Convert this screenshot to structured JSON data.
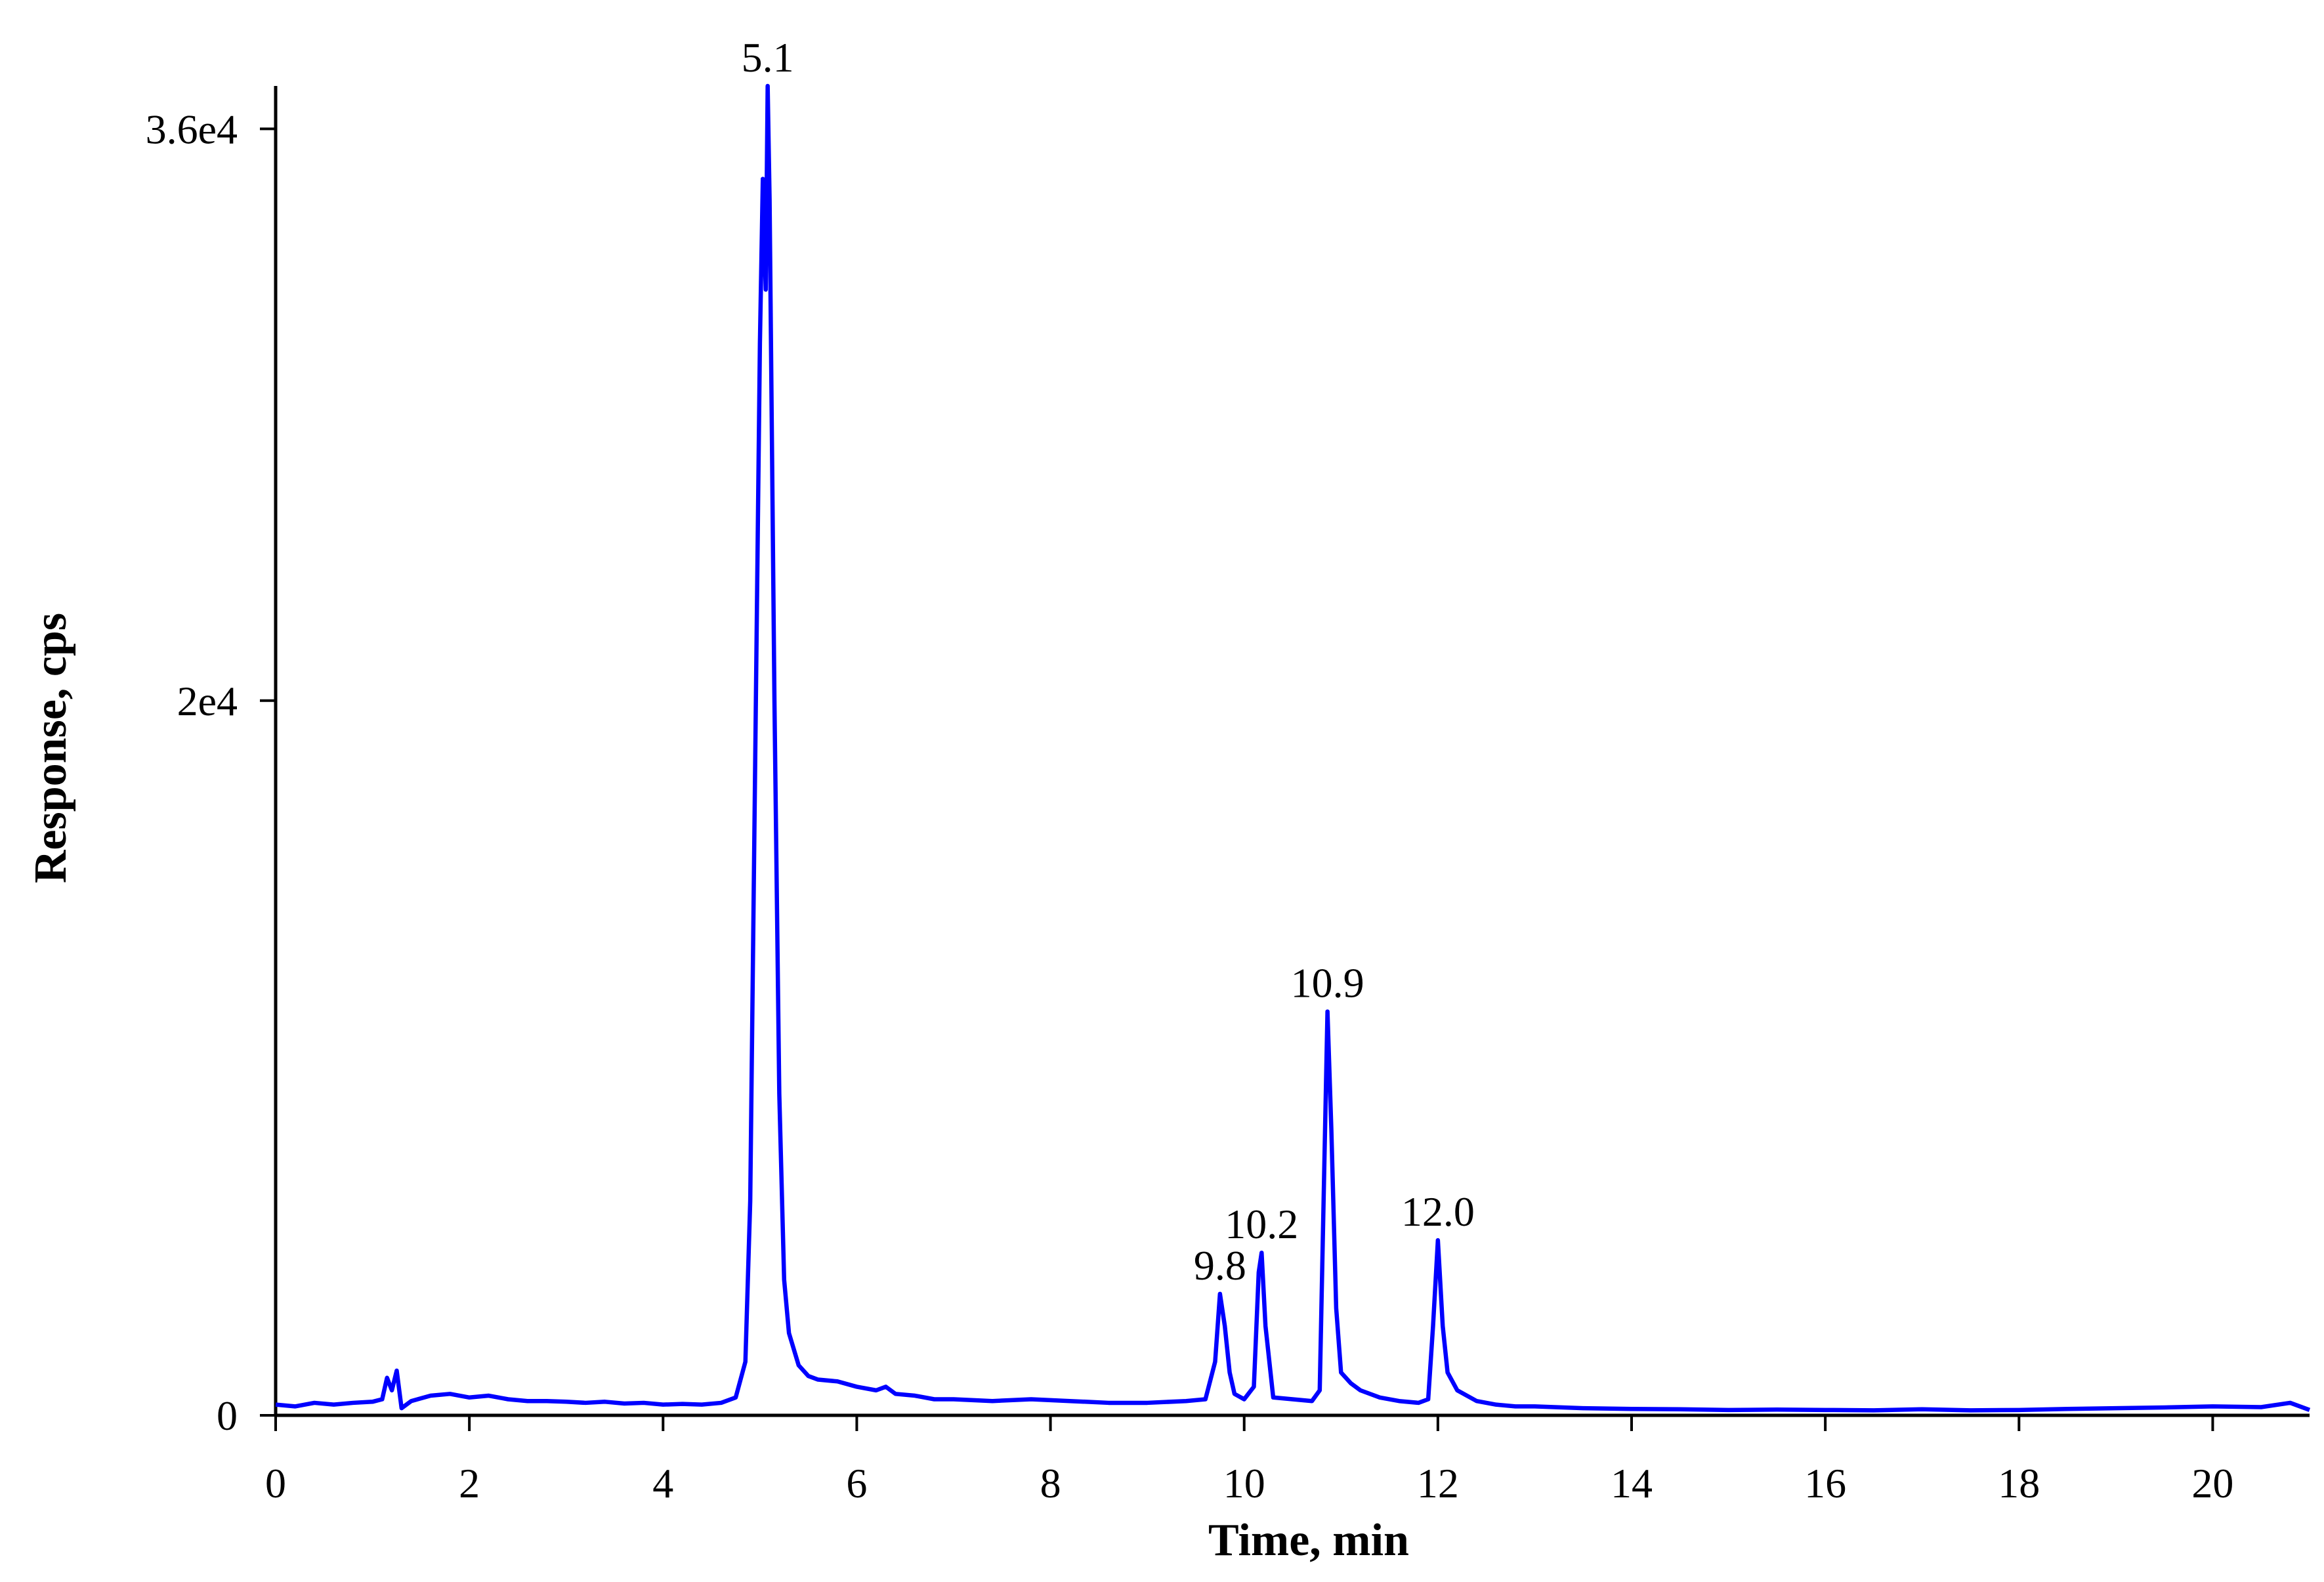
{
  "chart_data": {
    "type": "line",
    "x_label": "Time, min",
    "y_label": "Response, cps",
    "color": "#0000ff",
    "xlim": [
      0,
      21
    ],
    "xticks": [
      0,
      2,
      4,
      6,
      8,
      10,
      12,
      14,
      16,
      18,
      20
    ],
    "ylim": [
      0,
      37200
    ],
    "yticks": [
      0,
      {
        "value": 20000,
        "label": "2e4"
      },
      {
        "value": 36000,
        "label": "3.6e4"
      }
    ],
    "x": [
      0,
      0.2,
      0.4,
      0.6,
      0.8,
      1.0,
      1.1,
      1.15,
      1.2,
      1.25,
      1.3,
      1.4,
      1.6,
      1.8,
      2.0,
      2.2,
      2.4,
      2.6,
      2.8,
      3.0,
      3.2,
      3.4,
      3.6,
      3.8,
      4.0,
      4.2,
      4.4,
      4.6,
      4.75,
      4.85,
      4.9,
      4.95,
      5.0,
      5.03,
      5.06,
      5.08,
      5.1,
      5.15,
      5.2,
      5.25,
      5.3,
      5.4,
      5.5,
      5.6,
      5.8,
      6.0,
      6.2,
      6.3,
      6.4,
      6.6,
      6.8,
      7.0,
      7.4,
      7.8,
      8.2,
      8.6,
      9.0,
      9.4,
      9.6,
      9.7,
      9.75,
      9.8,
      9.85,
      9.9,
      10.0,
      10.1,
      10.15,
      10.18,
      10.22,
      10.3,
      10.5,
      10.7,
      10.78,
      10.82,
      10.86,
      10.9,
      10.95,
      11.0,
      11.1,
      11.2,
      11.4,
      11.6,
      11.8,
      11.9,
      11.95,
      12.0,
      12.05,
      12.1,
      12.2,
      12.4,
      12.6,
      12.8,
      13.0,
      13.5,
      14.0,
      14.5,
      15.0,
      15.5,
      16.0,
      16.5,
      17.0,
      17.5,
      18.0,
      18.5,
      19.0,
      19.5,
      20.0,
      20.5,
      20.8,
      21.0
    ],
    "values": [
      300,
      250,
      350,
      300,
      350,
      380,
      450,
      1050,
      700,
      1250,
      200,
      400,
      550,
      600,
      500,
      550,
      450,
      400,
      400,
      380,
      350,
      380,
      330,
      350,
      300,
      320,
      300,
      350,
      500,
      1500,
      6000,
      18000,
      30000,
      34600,
      31500,
      37200,
      34000,
      20000,
      9000,
      3800,
      2300,
      1400,
      1100,
      1000,
      950,
      800,
      700,
      800,
      600,
      550,
      450,
      450,
      400,
      450,
      400,
      350,
      350,
      400,
      450,
      1500,
      3400,
      2500,
      1200,
      600,
      450,
      800,
      4000,
      4550,
      2500,
      500,
      450,
      400,
      700,
      6000,
      11300,
      8000,
      3000,
      1200,
      900,
      700,
      500,
      400,
      350,
      450,
      2500,
      4900,
      2500,
      1200,
      700,
      400,
      300,
      250,
      250,
      200,
      180,
      170,
      150,
      160,
      150,
      140,
      170,
      140,
      150,
      180,
      200,
      220,
      250,
      230,
      350,
      150
    ],
    "annotations": [
      {
        "text": "5.1",
        "x": 5.1
      },
      {
        "text": "9.8",
        "x": 9.8
      },
      {
        "text": "10.2",
        "x": 10.2
      },
      {
        "text": "10.9",
        "x": 10.9
      },
      {
        "text": "12.0",
        "x": 12.0
      }
    ]
  }
}
